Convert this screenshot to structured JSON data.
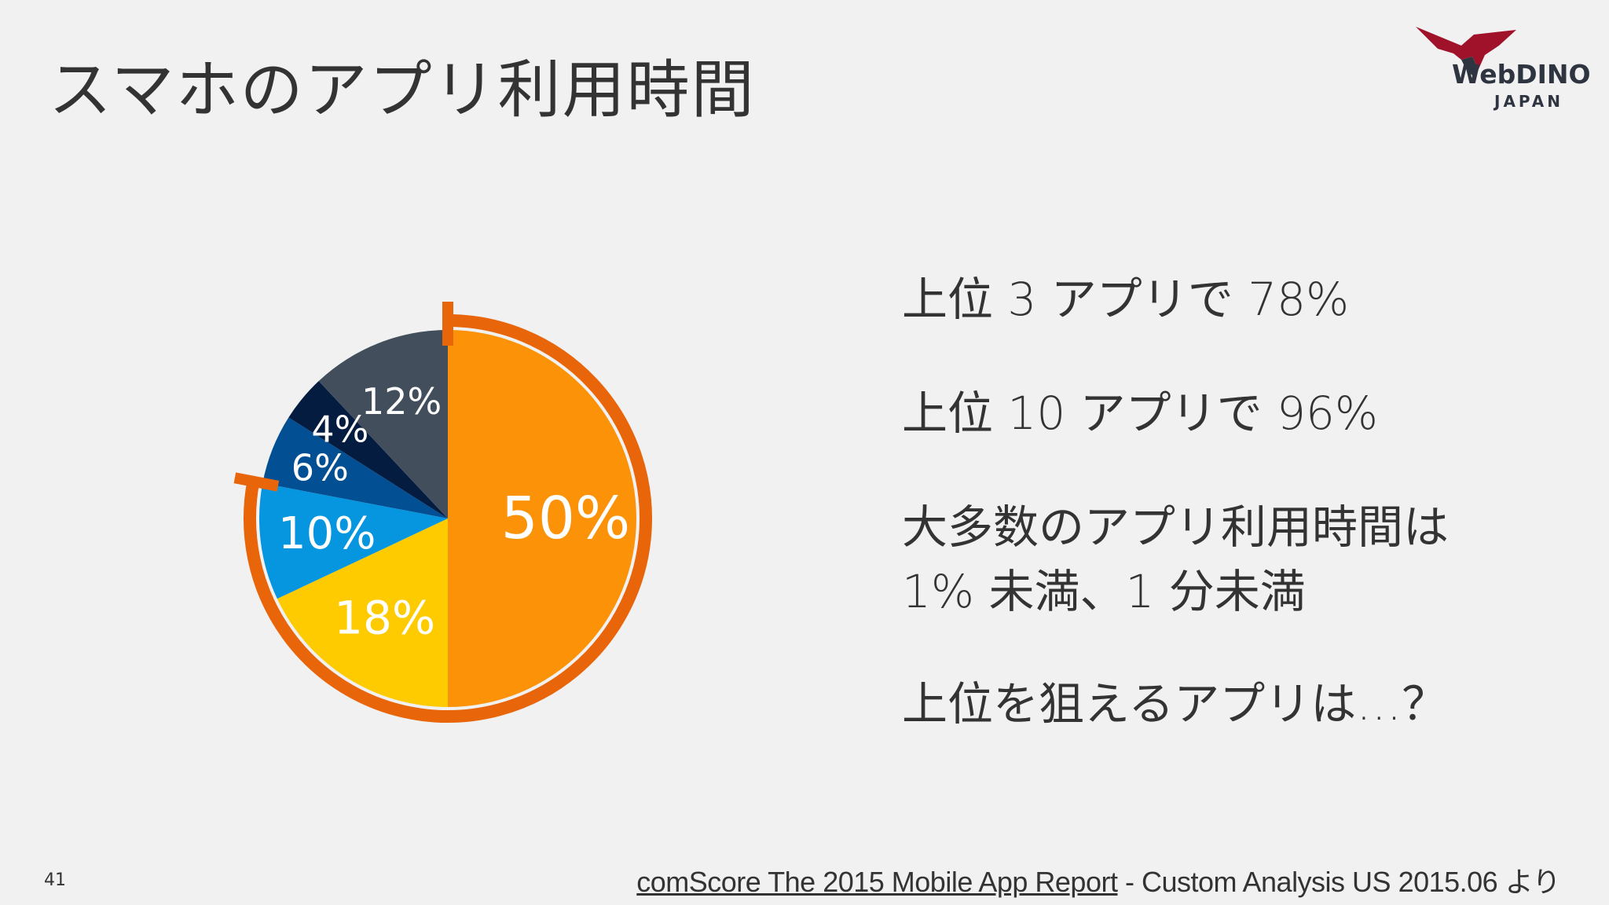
{
  "slide": {
    "title": "スマホのアプリ利用時間",
    "page_number": "41"
  },
  "logo": {
    "name": "WebDINO",
    "sub": "JAPAN",
    "color_red": "#a0122a",
    "color_dark": "#2e3540"
  },
  "bullets": [
    "上位 3 アプリで 78%",
    "上位 10 アプリで 96%",
    "大多数のアプリ利用時間は",
    "1% 未満、1 分未満",
    "上位を狙えるアプリは…？"
  ],
  "source": {
    "link_text": "comScore The 2015 Mobile App Report",
    "rest_text": " - Custom Analysis  US 2015.06 より"
  },
  "chart_data": {
    "type": "pie",
    "title": "",
    "slices": [
      {
        "label": "50%",
        "value": 50,
        "color": "#fb9208"
      },
      {
        "label": "18%",
        "value": 18,
        "color": "#fecb00"
      },
      {
        "label": "10%",
        "value": 10,
        "color": "#0696df"
      },
      {
        "label": "6%",
        "value": 6,
        "color": "#024f93"
      },
      {
        "label": "4%",
        "value": 4,
        "color": "#041c40"
      },
      {
        "label": "12%",
        "value": 12,
        "color": "#424e5b"
      }
    ],
    "highlight": {
      "covers_slices": [
        "50%",
        "18%",
        "10%"
      ],
      "total_label": "上位 3 アプリで 78%",
      "color": "#e8650a"
    }
  }
}
